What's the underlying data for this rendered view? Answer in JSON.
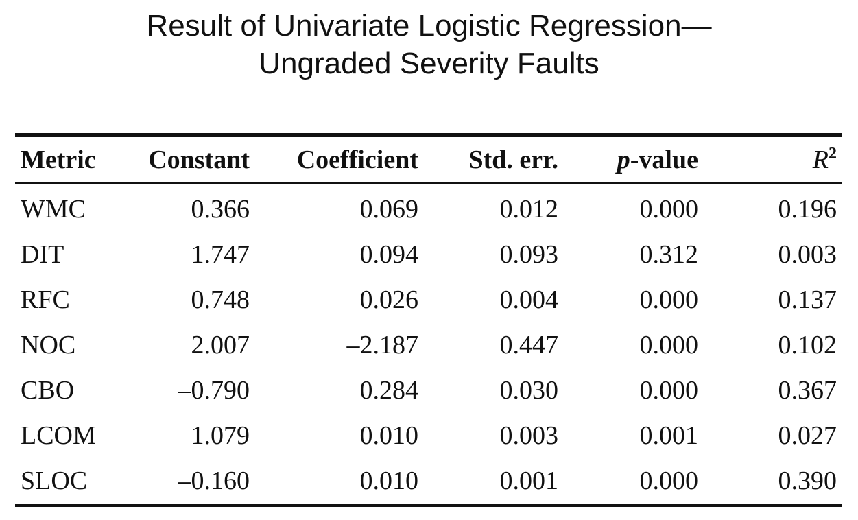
{
  "title": {
    "line1": "Result of Univariate Logistic Regression—",
    "line2": "Ungraded Severity Faults"
  },
  "table": {
    "headers": {
      "metric": "Metric",
      "constant": "Constant",
      "coefficient": "Coefficient",
      "std_err": "Std. err.",
      "p_value_italic": "p",
      "p_value_rest": "-value",
      "r2_base": "R",
      "r2_sup": "2"
    },
    "rows": [
      {
        "metric": "WMC",
        "constant": "0.366",
        "coefficient": "0.069",
        "std_err": "0.012",
        "p_value": "0.000",
        "r2": "0.196"
      },
      {
        "metric": "DIT",
        "constant": "1.747",
        "coefficient": "0.094",
        "std_err": "0.093",
        "p_value": "0.312",
        "r2": "0.003"
      },
      {
        "metric": "RFC",
        "constant": "0.748",
        "coefficient": "0.026",
        "std_err": "0.004",
        "p_value": "0.000",
        "r2": "0.137"
      },
      {
        "metric": "NOC",
        "constant": "2.007",
        "coefficient": "–2.187",
        "std_err": "0.447",
        "p_value": "0.000",
        "r2": "0.102"
      },
      {
        "metric": "CBO",
        "constant": "–0.790",
        "coefficient": "0.284",
        "std_err": "0.030",
        "p_value": "0.000",
        "r2": "0.367"
      },
      {
        "metric": "LCOM",
        "constant": "1.079",
        "coefficient": "0.010",
        "std_err": "0.003",
        "p_value": "0.001",
        "r2": "0.027"
      },
      {
        "metric": "SLOC",
        "constant": "–0.160",
        "coefficient": "0.010",
        "std_err": "0.001",
        "p_value": "0.000",
        "r2": "0.390"
      }
    ]
  }
}
